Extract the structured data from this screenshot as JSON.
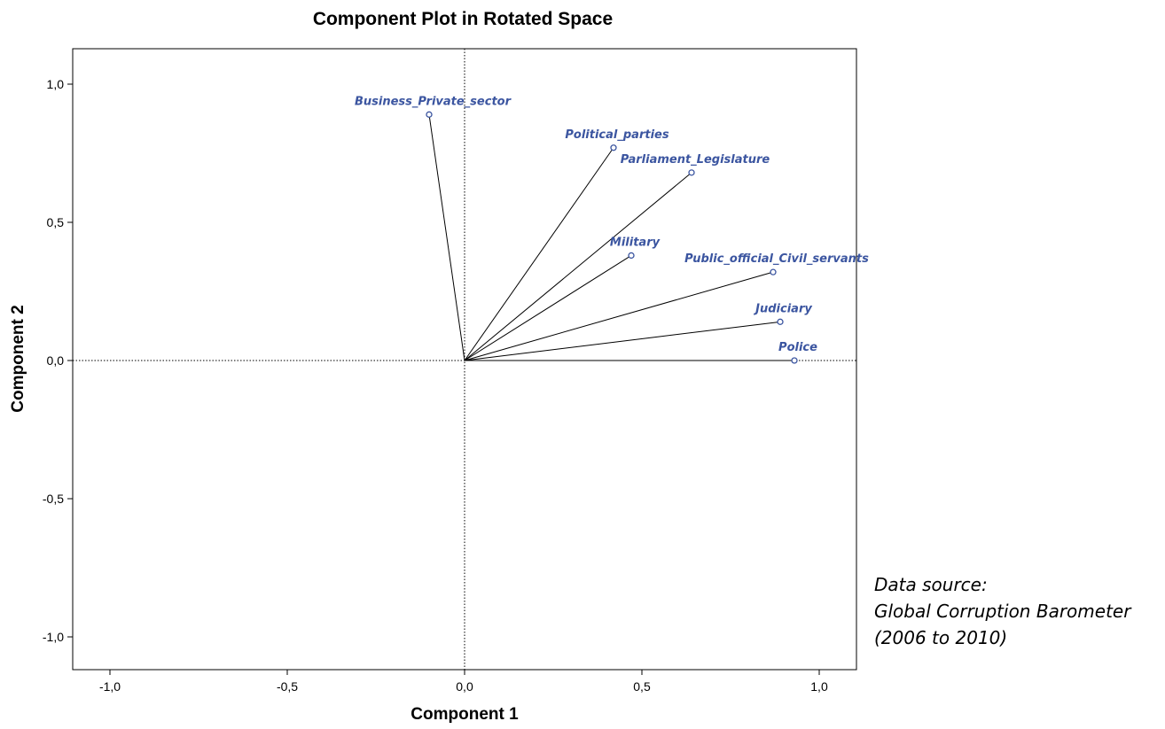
{
  "chart_data": {
    "type": "scatter",
    "title": "Component Plot in Rotated Space",
    "xlabel": "Component 1",
    "ylabel": "Component 2",
    "xlim": [
      -1.0,
      1.0
    ],
    "ylim": [
      -1.0,
      1.0
    ],
    "xticks": [
      "-1,0",
      "-0,5",
      "0,0",
      "0,5",
      "1,0"
    ],
    "yticks": [
      "1,0",
      "0,5",
      "0,0",
      "-0,5",
      "-1,0"
    ],
    "grid": false,
    "reference_lines": "dotted lines at x=0 and y=0",
    "vectors_from_origin": true,
    "point_color": "#3b55a0",
    "points": [
      {
        "label": "Business_Private_sector",
        "x": -0.1,
        "y": 0.89
      },
      {
        "label": "Political_parties",
        "x": 0.42,
        "y": 0.77
      },
      {
        "label": "Parliament_Legislature",
        "x": 0.64,
        "y": 0.68
      },
      {
        "label": "Military",
        "x": 0.47,
        "y": 0.38
      },
      {
        "label": "Public_official_Civil_servants",
        "x": 0.87,
        "y": 0.32
      },
      {
        "label": "Judiciary",
        "x": 0.89,
        "y": 0.14
      },
      {
        "label": "Police",
        "x": 0.93,
        "y": 0.0
      }
    ]
  },
  "note": {
    "line1": "Data source:",
    "line2": "Global Corruption Barometer",
    "line3": "(2006 to 2010)"
  }
}
